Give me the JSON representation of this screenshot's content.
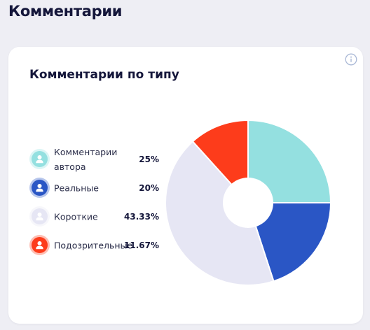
{
  "page": {
    "title": "Комментарии"
  },
  "card": {
    "title": "Комментарии по типу",
    "info_icon": "info-icon"
  },
  "chart_data": {
    "type": "pie",
    "style": "donut",
    "categories": [
      "Комментарии автора",
      "Реальные",
      "Короткие",
      "Подозрительные"
    ],
    "labels": [
      "Комментарии автора",
      "Реальные",
      "Короткие",
      "Подозрительные"
    ],
    "values": [
      25,
      20,
      43.33,
      11.67
    ],
    "value_labels": [
      "25%",
      "20%",
      "43.33%",
      "11.67%"
    ],
    "colors": [
      "#94e0e0",
      "#2a56c5",
      "#e6e6f4",
      "#fd3c1b"
    ],
    "legend_placement": "left",
    "legend_icon": "user-icon"
  }
}
